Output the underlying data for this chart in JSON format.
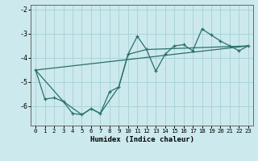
{
  "xlabel": "Humidex (Indice chaleur)",
  "bg_color": "#cce9ed",
  "grid_color": "#aad4d8",
  "line_color": "#2a7068",
  "xlim": [
    -0.5,
    23.5
  ],
  "ylim": [
    -6.8,
    -1.8
  ],
  "yticks": [
    -6,
    -5,
    -4,
    -3,
    -2
  ],
  "ytick_labels": [
    "-6",
    "-5",
    "-4",
    "-3",
    "-2"
  ],
  "xticks": [
    0,
    1,
    2,
    3,
    4,
    5,
    6,
    7,
    8,
    9,
    10,
    11,
    12,
    13,
    14,
    15,
    16,
    17,
    18,
    19,
    20,
    21,
    22,
    23
  ],
  "line1_x": [
    0,
    1,
    2,
    3,
    4,
    5,
    6,
    7,
    8,
    9,
    10,
    11,
    12,
    13,
    14,
    15,
    16,
    17,
    18,
    19,
    20,
    21,
    22,
    23
  ],
  "line1_y": [
    -4.5,
    -5.7,
    -5.65,
    -5.8,
    -6.3,
    -6.35,
    -6.1,
    -6.3,
    -5.4,
    -5.2,
    -3.85,
    -3.1,
    -3.65,
    -4.55,
    -3.85,
    -3.5,
    -3.45,
    -3.7,
    -2.8,
    -3.05,
    -3.3,
    -3.5,
    -3.7,
    -3.5
  ],
  "line2_x": [
    0,
    3,
    5,
    6,
    7,
    9,
    10,
    12,
    23
  ],
  "line2_y": [
    -4.5,
    -5.8,
    -6.35,
    -6.1,
    -6.3,
    -5.2,
    -3.85,
    -3.65,
    -3.5
  ],
  "line3_x": [
    0,
    23
  ],
  "line3_y": [
    -4.5,
    -3.5
  ]
}
